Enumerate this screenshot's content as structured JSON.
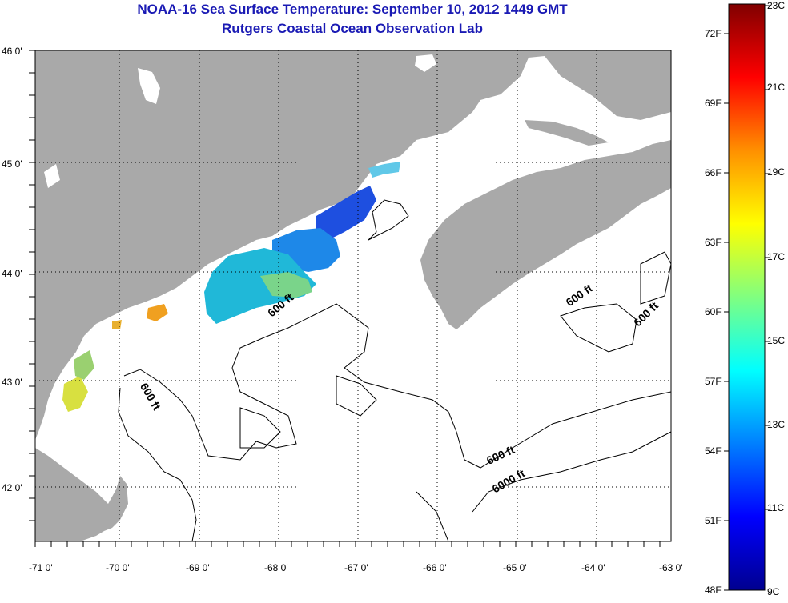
{
  "title": "NOAA-16 Sea Surface Temperature:  September 10, 2012 1449 GMT",
  "subtitle": "Rutgers Coastal Ocean Observation Lab",
  "lat_labels": [
    "46 0'",
    "45 0'",
    "44 0'",
    "43 0'",
    "42 0'"
  ],
  "lon_labels": [
    "-71 0'",
    "-70 0'",
    "-69 0'",
    "-68 0'",
    "-67 0'",
    "-66 0'",
    "-65 0'",
    "-64 0'",
    "-63 0'"
  ],
  "contours": [
    "600 ft",
    "600 ft",
    "600 ft",
    "600 ft",
    "600 ft",
    "6000 ft"
  ],
  "colorbar": {
    "fahrenheit": [
      "72F",
      "69F",
      "66F",
      "63F",
      "60F",
      "57F",
      "54F",
      "51F",
      "48F"
    ],
    "celsius": [
      "23C",
      "21C",
      "19C",
      "17C",
      "15C",
      "13C",
      "11C",
      "9C"
    ]
  },
  "colors": {
    "land": "#a9a9a9",
    "title": "#1a1ab4",
    "grid": "#000000"
  }
}
